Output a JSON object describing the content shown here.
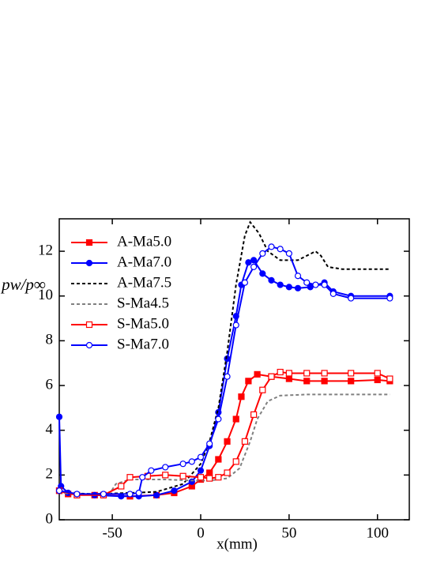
{
  "chart_data": {
    "type": "line",
    "x_label": "x(mm)",
    "y_label": "pw/p∞",
    "xlim": [
      -80,
      118
    ],
    "ylim": [
      0,
      13.45
    ],
    "xticks": [
      -50,
      0,
      50,
      100
    ],
    "yticks": [
      0,
      2,
      4,
      6,
      8,
      10,
      12
    ],
    "legend": "upper left",
    "series": [
      {
        "name": "A-Ma5.0",
        "color": "#ff0000",
        "marker": "square",
        "filled": true,
        "dashed": false,
        "x": [
          -80,
          -75,
          -60,
          -40,
          -25,
          -15,
          -5,
          0,
          5,
          10,
          15,
          20,
          23,
          27,
          32,
          40,
          50,
          60,
          70,
          85,
          100,
          107
        ],
        "values": [
          1.3,
          1.15,
          1.1,
          1.05,
          1.1,
          1.2,
          1.5,
          1.8,
          2.1,
          2.7,
          3.5,
          4.5,
          5.5,
          6.2,
          6.5,
          6.4,
          6.3,
          6.2,
          6.2,
          6.2,
          6.25,
          6.2
        ]
      },
      {
        "name": "A-Ma7.0",
        "color": "#0000ff",
        "marker": "circle",
        "filled": true,
        "dashed": false,
        "x": [
          -80,
          -79,
          -75,
          -60,
          -45,
          -35,
          -25,
          -15,
          -5,
          0,
          5,
          10,
          15,
          20,
          23,
          27,
          30,
          35,
          40,
          45,
          50,
          55,
          62,
          70,
          75,
          85,
          107
        ],
        "values": [
          4.6,
          1.5,
          1.2,
          1.1,
          1.05,
          1.05,
          1.1,
          1.3,
          1.7,
          2.2,
          3.3,
          4.8,
          7.2,
          9.1,
          10.5,
          11.5,
          11.6,
          11,
          10.7,
          10.5,
          10.4,
          10.35,
          10.4,
          10.6,
          10.2,
          10,
          10
        ]
      },
      {
        "name": "A-Ma7.5",
        "color": "#000000",
        "marker": null,
        "filled": false,
        "dashed": true,
        "x": [
          -80,
          -60,
          -40,
          -25,
          -10,
          0,
          5,
          10,
          15,
          20,
          25,
          28,
          33,
          38,
          45,
          55,
          65,
          68,
          72,
          80,
          107
        ],
        "values": [
          1.2,
          1.15,
          1.2,
          1.25,
          1.6,
          2.5,
          3.5,
          5,
          7.5,
          10.5,
          12.7,
          13.3,
          12.8,
          12,
          11.6,
          11.6,
          12,
          11.8,
          11.3,
          11.2,
          11.2
        ]
      },
      {
        "name": "S-Ma4.5",
        "color": "#808080",
        "marker": null,
        "filled": false,
        "dashed": true,
        "x": [
          -80,
          -60,
          -52,
          -48,
          -40,
          -20,
          -5,
          5,
          15,
          22,
          28,
          32,
          38,
          45,
          60,
          107
        ],
        "values": [
          1.2,
          1.1,
          1.1,
          1.6,
          1.8,
          1.8,
          1.75,
          1.75,
          1.85,
          2.3,
          3.5,
          4.5,
          5.3,
          5.55,
          5.6,
          5.6
        ]
      },
      {
        "name": "S-Ma5.0",
        "color": "#ff0000",
        "marker": "square",
        "filled": false,
        "dashed": false,
        "x": [
          -80,
          -70,
          -55,
          -45,
          -40,
          -30,
          -20,
          -10,
          0,
          5,
          10,
          15,
          20,
          25,
          30,
          35,
          40,
          45,
          50,
          60,
          70,
          85,
          100,
          107
        ],
        "values": [
          1.3,
          1.1,
          1.1,
          1.5,
          1.9,
          1.95,
          2,
          1.95,
          1.9,
          1.85,
          1.9,
          2.1,
          2.6,
          3.5,
          4.7,
          5.8,
          6.4,
          6.6,
          6.55,
          6.55,
          6.55,
          6.55,
          6.55,
          6.3
        ]
      },
      {
        "name": "S-Ma7.0",
        "color": "#0000ff",
        "marker": "circle",
        "filled": false,
        "dashed": false,
        "x": [
          -80,
          -70,
          -55,
          -40,
          -35,
          -33,
          -28,
          -20,
          -10,
          -5,
          0,
          5,
          10,
          15,
          20,
          25,
          30,
          35,
          40,
          45,
          50,
          55,
          60,
          65,
          70,
          75,
          85,
          107
        ],
        "values": [
          1.3,
          1.15,
          1.15,
          1.15,
          1.2,
          1.9,
          2.2,
          2.35,
          2.5,
          2.6,
          2.8,
          3.4,
          4.5,
          6.4,
          8.7,
          10.6,
          11.3,
          11.9,
          12.2,
          12.1,
          11.9,
          10.9,
          10.6,
          10.5,
          10.5,
          10.1,
          9.9,
          9.9
        ]
      }
    ]
  }
}
